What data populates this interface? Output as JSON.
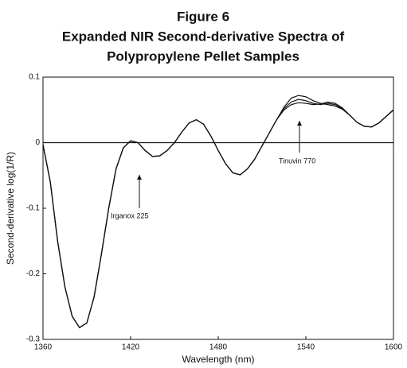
{
  "chart_data": {
    "type": "line",
    "title": "Figure 6",
    "subtitle": [
      "Expanded NIR Second-derivative Spectra of",
      "Polypropylene Pellet Samples"
    ],
    "x_label": "Wavelength (nm)",
    "y_label": "Second-derivative log(1/R)",
    "annotations": [
      "Irganox 225",
      "Tinuvin 770"
    ],
    "x": [
      1360,
      1365,
      1370,
      1375,
      1380,
      1385,
      1390,
      1395,
      1400,
      1405,
      1410,
      1415,
      1420,
      1425,
      1430,
      1435,
      1440,
      1445,
      1450,
      1455,
      1460,
      1465,
      1470,
      1475,
      1480,
      1485,
      1490,
      1495,
      1500,
      1505,
      1510,
      1515,
      1520,
      1525,
      1530,
      1535,
      1540,
      1545,
      1550,
      1555,
      1560,
      1565,
      1570,
      1575,
      1580,
      1585,
      1590,
      1595,
      1600
    ],
    "series": [
      {
        "color": "#111111",
        "values": [
          -0.003,
          -0.06,
          -0.15,
          -0.22,
          -0.265,
          -0.282,
          -0.275,
          -0.235,
          -0.17,
          -0.1,
          -0.04,
          -0.008,
          0.003,
          0.0,
          -0.012,
          -0.021,
          -0.02,
          -0.012,
          0.0,
          0.016,
          0.03,
          0.035,
          0.028,
          0.01,
          -0.012,
          -0.032,
          -0.046,
          -0.049,
          -0.04,
          -0.025,
          -0.005,
          0.015,
          0.035,
          0.052,
          0.062,
          0.066,
          0.064,
          0.06,
          0.058,
          0.06,
          0.058,
          0.052,
          0.042,
          0.031,
          0.025,
          0.024,
          0.03,
          0.04,
          0.05
        ]
      },
      {
        "color": "#111111",
        "values": [
          -0.003,
          -0.06,
          -0.15,
          -0.22,
          -0.265,
          -0.282,
          -0.275,
          -0.235,
          -0.17,
          -0.1,
          -0.04,
          -0.008,
          0.003,
          0.0,
          -0.012,
          -0.021,
          -0.02,
          -0.012,
          0.0,
          0.016,
          0.03,
          0.035,
          0.028,
          0.01,
          -0.012,
          -0.032,
          -0.046,
          -0.049,
          -0.04,
          -0.025,
          -0.005,
          0.015,
          0.035,
          0.054,
          0.068,
          0.072,
          0.07,
          0.064,
          0.06,
          0.058,
          0.056,
          0.051,
          0.042,
          0.031,
          0.025,
          0.024,
          0.03,
          0.04,
          0.05
        ]
      },
      {
        "color": "#111111",
        "values": [
          -0.003,
          -0.06,
          -0.15,
          -0.22,
          -0.265,
          -0.282,
          -0.275,
          -0.235,
          -0.17,
          -0.1,
          -0.04,
          -0.008,
          0.003,
          0.0,
          -0.012,
          -0.021,
          -0.02,
          -0.012,
          0.0,
          0.016,
          0.03,
          0.035,
          0.028,
          0.01,
          -0.012,
          -0.032,
          -0.046,
          -0.049,
          -0.04,
          -0.025,
          -0.005,
          0.015,
          0.035,
          0.05,
          0.058,
          0.061,
          0.06,
          0.058,
          0.059,
          0.062,
          0.06,
          0.053,
          0.042,
          0.031,
          0.025,
          0.024,
          0.03,
          0.04,
          0.05
        ]
      }
    ],
    "xlim": [
      1360,
      1600
    ],
    "xticks": [
      1360,
      1420,
      1480,
      1540,
      1600
    ],
    "ylim": [
      -0.3,
      0.1
    ],
    "yticks": [
      0.1,
      0,
      -0.1,
      -0.2,
      -0.3
    ],
    "zero_line": true
  }
}
